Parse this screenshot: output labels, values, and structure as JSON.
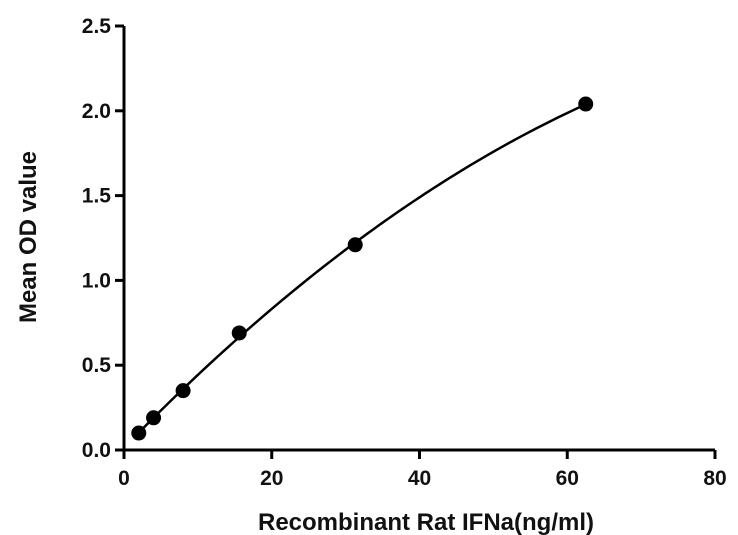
{
  "chart_data": {
    "type": "scatter",
    "title": "",
    "xlabel": "Recombinant Rat IFNa(ng/ml)",
    "ylabel": "Mean OD value",
    "xlim": [
      0,
      80
    ],
    "ylim": [
      0,
      2.5
    ],
    "xticks": [
      0,
      20,
      40,
      60,
      80
    ],
    "yticks": [
      0.0,
      0.5,
      1.0,
      1.5,
      2.0,
      2.5
    ],
    "xtick_labels": [
      "0",
      "20",
      "40",
      "60",
      "80"
    ],
    "ytick_labels": [
      "0.0",
      "0.5",
      "1.0",
      "1.5",
      "2.0",
      "2.5"
    ],
    "grid": false,
    "legend": "none",
    "series": [
      {
        "x": [
          2,
          4,
          8,
          15.6,
          31.3,
          62.5
        ],
        "y": [
          0.1,
          0.19,
          0.35,
          0.69,
          1.21,
          2.04
        ],
        "fit": "curve"
      }
    ]
  }
}
